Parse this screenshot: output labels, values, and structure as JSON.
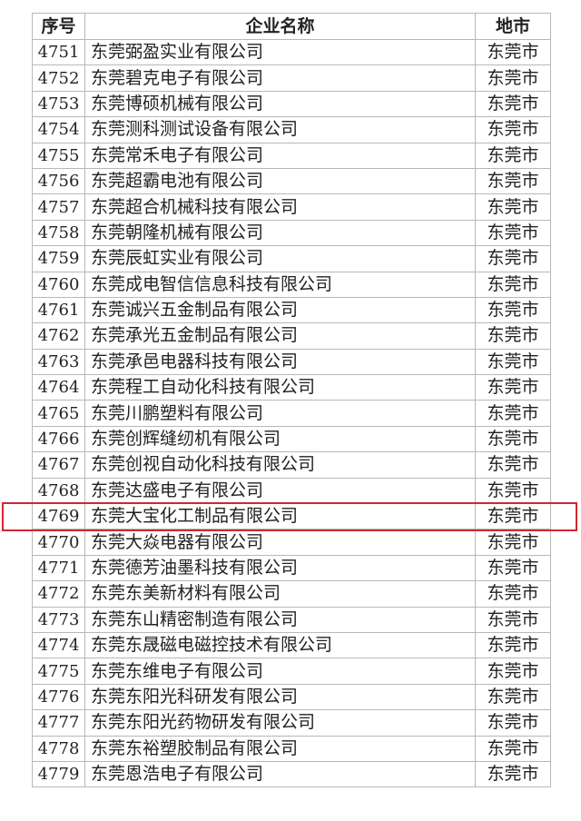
{
  "table": {
    "headers": [
      "序号",
      "企业名称",
      "地市"
    ],
    "rows": [
      [
        "4751",
        "东莞弼盈实业有限公司",
        "东莞市"
      ],
      [
        "4752",
        "东莞碧克电子有限公司",
        "东莞市"
      ],
      [
        "4753",
        "东莞博硕机械有限公司",
        "东莞市"
      ],
      [
        "4754",
        "东莞测科测试设备有限公司",
        "东莞市"
      ],
      [
        "4755",
        "东莞常禾电子有限公司",
        "东莞市"
      ],
      [
        "4756",
        "东莞超霸电池有限公司",
        "东莞市"
      ],
      [
        "4757",
        "东莞超合机械科技有限公司",
        "东莞市"
      ],
      [
        "4758",
        "东莞朝隆机械有限公司",
        "东莞市"
      ],
      [
        "4759",
        "东莞辰虹实业有限公司",
        "东莞市"
      ],
      [
        "4760",
        "东莞成电智信信息科技有限公司",
        "东莞市"
      ],
      [
        "4761",
        "东莞诚兴五金制品有限公司",
        "东莞市"
      ],
      [
        "4762",
        "东莞承光五金制品有限公司",
        "东莞市"
      ],
      [
        "4763",
        "东莞承邑电器科技有限公司",
        "东莞市"
      ],
      [
        "4764",
        "东莞程工自动化科技有限公司",
        "东莞市"
      ],
      [
        "4765",
        "东莞川鹏塑料有限公司",
        "东莞市"
      ],
      [
        "4766",
        "东莞创辉缝纫机有限公司",
        "东莞市"
      ],
      [
        "4767",
        "东莞创视自动化科技有限公司",
        "东莞市"
      ],
      [
        "4768",
        "东莞达盛电子有限公司",
        "东莞市"
      ],
      [
        "4769",
        "东莞大宝化工制品有限公司",
        "东莞市"
      ],
      [
        "4770",
        "东莞大焱电器有限公司",
        "东莞市"
      ],
      [
        "4771",
        "东莞德芳油墨科技有限公司",
        "东莞市"
      ],
      [
        "4772",
        "东莞东美新材料有限公司",
        "东莞市"
      ],
      [
        "4773",
        "东莞东山精密制造有限公司",
        "东莞市"
      ],
      [
        "4774",
        "东莞东晟磁电磁控技术有限公司",
        "东莞市"
      ],
      [
        "4775",
        "东莞东维电子有限公司",
        "东莞市"
      ],
      [
        "4776",
        "东莞东阳光科研发有限公司",
        "东莞市"
      ],
      [
        "4777",
        "东莞东阳光药物研发有限公司",
        "东莞市"
      ],
      [
        "4778",
        "东莞东裕塑胶制品有限公司",
        "东莞市"
      ],
      [
        "4779",
        "东莞恩浩电子有限公司",
        "东莞市"
      ]
    ],
    "highlighted_row": "4769",
    "highlight_color": "#d0282e"
  }
}
